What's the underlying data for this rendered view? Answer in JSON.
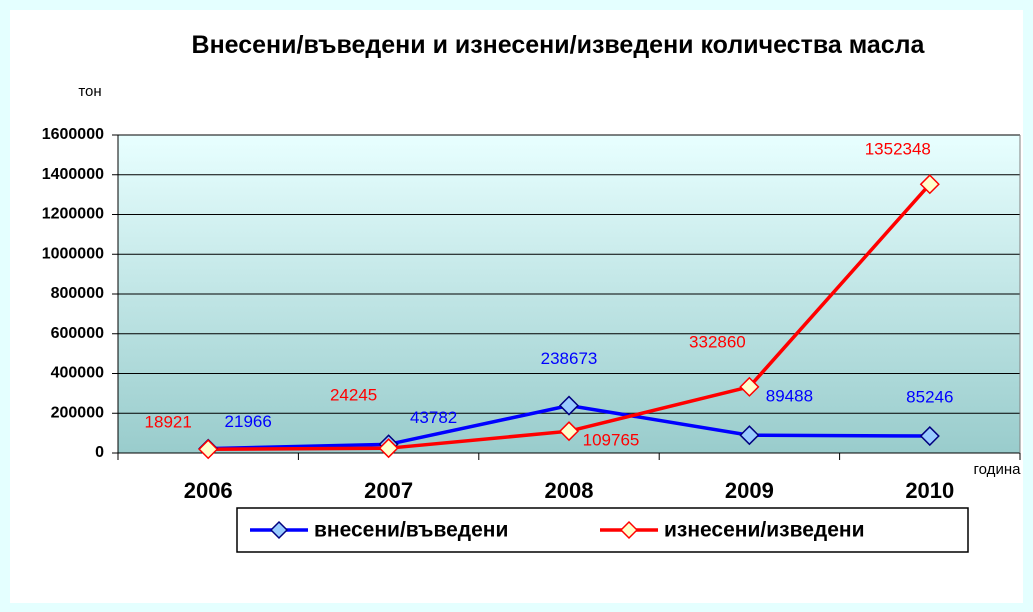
{
  "chart_data": {
    "type": "line",
    "title": "Внесени/въведени и изнесени/изведени количества масла",
    "y_label": "тон",
    "x_label": "година",
    "categories": [
      "2006",
      "2007",
      "2008",
      "2009",
      "2010"
    ],
    "series": [
      {
        "name": "внесени/въведени",
        "color": "#0000ff",
        "marker_fill": "#99ccff",
        "values": [
          21966,
          43782,
          238673,
          89488,
          85246
        ]
      },
      {
        "name": "изнесени/изведени",
        "color": "#ff0000",
        "marker_fill": "#ffffcc",
        "values": [
          18921,
          24245,
          109765,
          332860,
          1352348
        ]
      }
    ],
    "ylim": [
      0,
      1600000
    ],
    "yticks": [
      0,
      200000,
      400000,
      600000,
      800000,
      1000000,
      1200000,
      1400000,
      1600000
    ],
    "grid": true,
    "legend": "bottom"
  }
}
